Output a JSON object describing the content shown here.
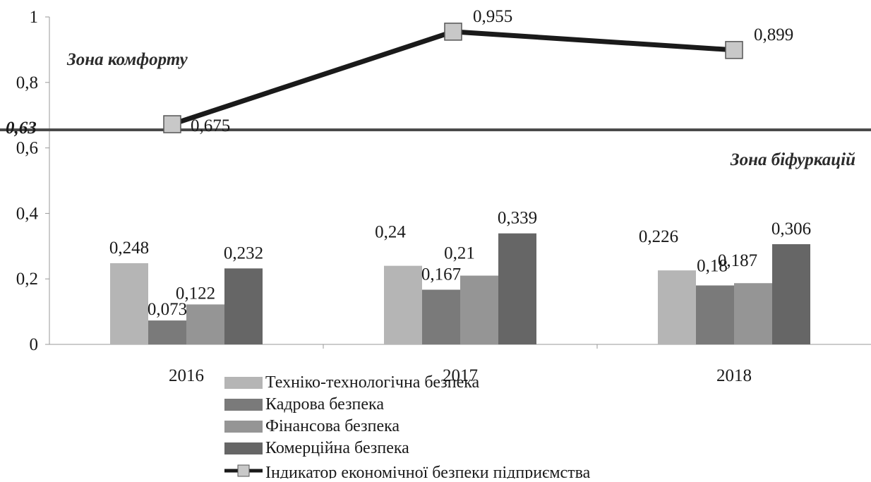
{
  "chart_data": {
    "type": "bar",
    "categories": [
      "2016",
      "2017",
      "2018"
    ],
    "ylim": [
      0,
      1
    ],
    "yticks": [
      "0",
      "0,2",
      "0,4",
      "0,6",
      "0,8",
      "1"
    ],
    "grid": false,
    "legend_position": "bottom",
    "series": [
      {
        "name": "Техніко-технологічна безпека",
        "values": [
          0.248,
          0.24,
          0.226
        ],
        "labels": [
          "0,248",
          "0,24",
          "0,226"
        ],
        "color": "#b5b5b5"
      },
      {
        "name": "Кадрова безпека",
        "values": [
          0.073,
          0.167,
          0.18
        ],
        "labels": [
          "0,073",
          "0,167",
          "0,18"
        ],
        "color": "#7a7a7a"
      },
      {
        "name": "Фінансова безпека",
        "values": [
          0.122,
          0.21,
          0.187
        ],
        "labels": [
          "0,122",
          "0,21",
          "0,187"
        ],
        "color": "#959595"
      },
      {
        "name": "Комерційна безпека",
        "values": [
          0.232,
          0.339,
          0.306
        ],
        "labels": [
          "0,232",
          "0,339",
          "0,306"
        ],
        "color": "#666666"
      }
    ],
    "line_series": {
      "name": "Індикатор економічної безпеки підприємства",
      "values": [
        0.675,
        0.955,
        0.899
      ],
      "labels": [
        "0,675",
        "0,955",
        "0,899"
      ],
      "color": "#1a1a1a",
      "marker_color": "#c8c8c8"
    },
    "threshold": {
      "value": 0.63,
      "label": "0,63"
    },
    "annotations": {
      "comfort_zone": "Зона комфорту",
      "bifurcation_zone": "Зона біфуркацій"
    }
  }
}
